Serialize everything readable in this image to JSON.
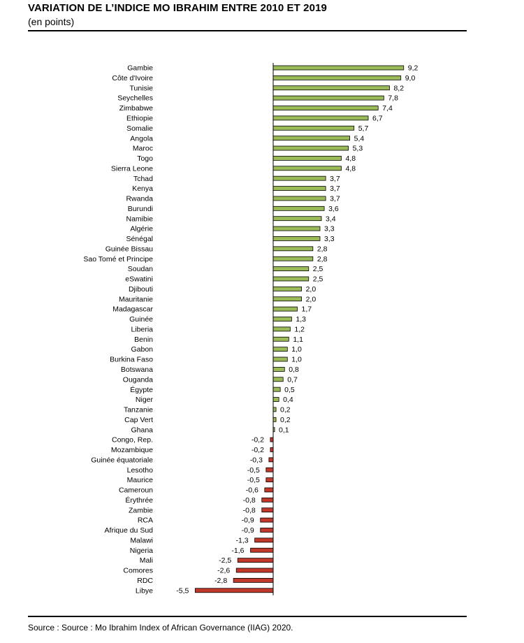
{
  "title": "VARIATION DE L’INDICE MO IBRAHIM ENTRE 2010 ET 2019",
  "subtitle": "(en points)",
  "source": "Source : Source : Mo Ibrahim Index of African Governance (IIAG) 2020.",
  "colors": {
    "positive": "#9bbb59",
    "negative": "#c0392b",
    "outline": "#000000"
  },
  "chart_data": {
    "type": "bar",
    "orientation": "horizontal",
    "title": "VARIATION DE L’INDICE MO IBRAHIM ENTRE 2010 ET 2019",
    "subtitle": "(en points)",
    "xlim": [
      -6,
      9.2
    ],
    "grid": false,
    "categories": [
      "Gambie",
      "Côte d'Ivoire",
      "Tunisie",
      "Seychelles",
      "Zimbabwe",
      "Ethiopie",
      "Somalie",
      "Angola",
      "Maroc",
      "Togo",
      "Sierra Leone",
      "Tchad",
      "Kenya",
      "Rwanda",
      "Burundi",
      "Namibie",
      "Algérie",
      "Sénégal",
      "Guinée Bissau",
      "Sao Tomé et Principe",
      "Soudan",
      "eSwatini",
      "Djibouti",
      "Mauritanie",
      "Madagascar",
      "Guinée",
      "Liberia",
      "Benin",
      "Gabon",
      "Burkina Faso",
      "Botswana",
      "Ouganda",
      "Égypte",
      "Niger",
      "Tanzanie",
      "Cap Vert",
      "Ghana",
      "Congo, Rep.",
      "Mozambique",
      "Guinée équatoriale",
      "Lesotho",
      "Maurice",
      "Cameroun",
      "Érythrée",
      "Zambie",
      "RCA",
      "Afrique du Sud",
      "Malawi",
      "Nigeria",
      "Mali",
      "Comores",
      "RDC",
      "Libye"
    ],
    "values": [
      9.2,
      9.0,
      8.2,
      7.8,
      7.4,
      6.7,
      5.7,
      5.4,
      5.3,
      4.8,
      4.8,
      3.7,
      3.7,
      3.7,
      3.6,
      3.4,
      3.3,
      3.3,
      2.8,
      2.8,
      2.5,
      2.5,
      2.0,
      2.0,
      1.7,
      1.3,
      1.2,
      1.1,
      1.0,
      1.0,
      0.8,
      0.7,
      0.5,
      0.4,
      0.2,
      0.2,
      0.1,
      -0.2,
      -0.2,
      -0.3,
      -0.5,
      -0.5,
      -0.6,
      -0.8,
      -0.8,
      -0.9,
      -0.9,
      -1.3,
      -1.6,
      -2.5,
      -2.6,
      -2.8,
      -5.5
    ],
    "value_labels": [
      "9,2",
      "9,0",
      "8,2",
      "7,8",
      "7,4",
      "6,7",
      "5,7",
      "5,4",
      "5,3",
      "4,8",
      "4,8",
      "3,7",
      "3,7",
      "3,7",
      "3,6",
      "3,4",
      "3,3",
      "3,3",
      "2,8",
      "2,8",
      "2,5",
      "2,5",
      "2,0",
      "2,0",
      "1,7",
      "1,3",
      "1,2",
      "1,1",
      "1,0",
      "1,0",
      "0,8",
      "0,7",
      "0,5",
      "0,4",
      "0,2",
      "0,2",
      "0,1",
      "-0,2",
      "-0,2",
      "-0,3",
      "-0,5",
      "-0,5",
      "-0,6",
      "-0,8",
      "-0,8",
      "-0,9",
      "-0,9",
      "-1,3",
      "-1,6",
      "-2,5",
      "-2,6",
      "-2,8",
      "-5,5"
    ]
  }
}
